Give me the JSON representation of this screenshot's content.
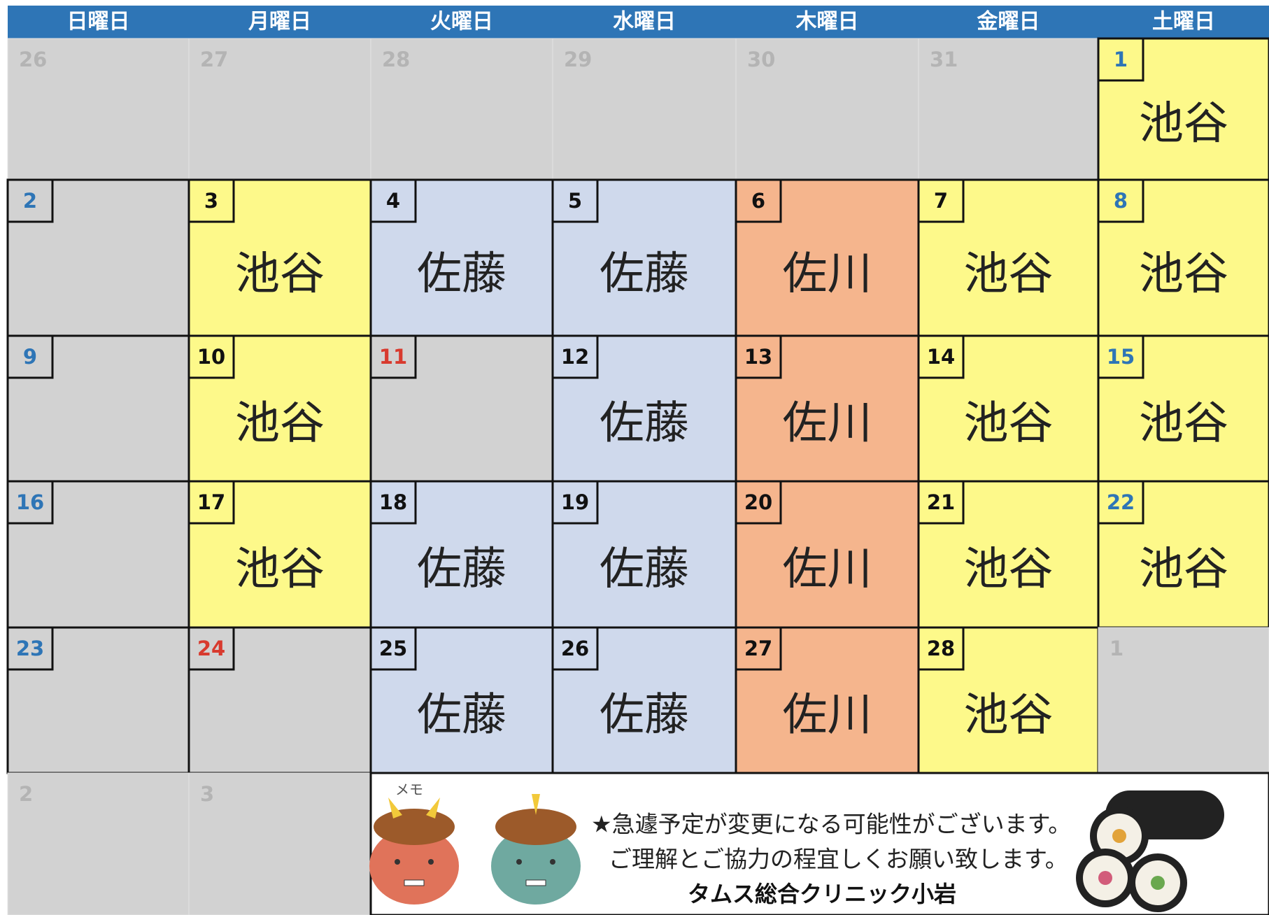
{
  "weekdays": [
    "日曜日",
    "月曜日",
    "火曜日",
    "水曜日",
    "木曜日",
    "金曜日",
    "土曜日"
  ],
  "weeks": [
    [
      {
        "day": "26",
        "color": "#d2d2d2",
        "day_color": "#b4b4b4",
        "outside": true
      },
      {
        "day": "27",
        "color": "#d2d2d2",
        "day_color": "#b4b4b4",
        "outside": true
      },
      {
        "day": "28",
        "color": "#d2d2d2",
        "day_color": "#b4b4b4",
        "outside": true
      },
      {
        "day": "29",
        "color": "#d2d2d2",
        "day_color": "#b4b4b4",
        "outside": true
      },
      {
        "day": "30",
        "color": "#d2d2d2",
        "day_color": "#b4b4b4",
        "outside": true
      },
      {
        "day": "31",
        "color": "#d2d2d2",
        "day_color": "#b4b4b4",
        "outside": true
      },
      {
        "day": "1",
        "color": "#fdf98a",
        "day_color": "#2e75b6",
        "doctor": "池谷"
      }
    ],
    [
      {
        "day": "2",
        "color": "#d2d2d2",
        "day_color": "#2e75b6"
      },
      {
        "day": "3",
        "color": "#fdf98a",
        "day_color": "#111111",
        "doctor": "池谷"
      },
      {
        "day": "4",
        "color": "#cfd9ec",
        "day_color": "#111111",
        "doctor": "佐藤"
      },
      {
        "day": "5",
        "color": "#cfd9ec",
        "day_color": "#111111",
        "doctor": "佐藤"
      },
      {
        "day": "6",
        "color": "#f5b58d",
        "day_color": "#111111",
        "doctor": "佐川"
      },
      {
        "day": "7",
        "color": "#fdf98a",
        "day_color": "#111111",
        "doctor": "池谷"
      },
      {
        "day": "8",
        "color": "#fdf98a",
        "day_color": "#2e75b6",
        "doctor": "池谷"
      }
    ],
    [
      {
        "day": "9",
        "color": "#d2d2d2",
        "day_color": "#2e75b6"
      },
      {
        "day": "10",
        "color": "#fdf98a",
        "day_color": "#111111",
        "doctor": "池谷"
      },
      {
        "day": "11",
        "color": "#d2d2d2",
        "day_color": "#d83a2e"
      },
      {
        "day": "12",
        "color": "#cfd9ec",
        "day_color": "#111111",
        "doctor": "佐藤"
      },
      {
        "day": "13",
        "color": "#f5b58d",
        "day_color": "#111111",
        "doctor": "佐川"
      },
      {
        "day": "14",
        "color": "#fdf98a",
        "day_color": "#111111",
        "doctor": "池谷"
      },
      {
        "day": "15",
        "color": "#fdf98a",
        "day_color": "#2e75b6",
        "doctor": "池谷"
      }
    ],
    [
      {
        "day": "16",
        "color": "#d2d2d2",
        "day_color": "#2e75b6"
      },
      {
        "day": "17",
        "color": "#fdf98a",
        "day_color": "#111111",
        "doctor": "池谷"
      },
      {
        "day": "18",
        "color": "#cfd9ec",
        "day_color": "#111111",
        "doctor": "佐藤"
      },
      {
        "day": "19",
        "color": "#cfd9ec",
        "day_color": "#111111",
        "doctor": "佐藤"
      },
      {
        "day": "20",
        "color": "#f5b58d",
        "day_color": "#111111",
        "doctor": "佐川"
      },
      {
        "day": "21",
        "color": "#fdf98a",
        "day_color": "#111111",
        "doctor": "池谷"
      },
      {
        "day": "22",
        "color": "#fdf98a",
        "day_color": "#2e75b6",
        "doctor": "池谷"
      }
    ],
    [
      {
        "day": "23",
        "color": "#d2d2d2",
        "day_color": "#2e75b6"
      },
      {
        "day": "24",
        "color": "#d2d2d2",
        "day_color": "#d83a2e"
      },
      {
        "day": "25",
        "color": "#cfd9ec",
        "day_color": "#111111",
        "doctor": "佐藤"
      },
      {
        "day": "26",
        "color": "#cfd9ec",
        "day_color": "#111111",
        "doctor": "佐藤"
      },
      {
        "day": "27",
        "color": "#f5b58d",
        "day_color": "#111111",
        "doctor": "佐川"
      },
      {
        "day": "28",
        "color": "#fdf98a",
        "day_color": "#111111",
        "doctor": "池谷"
      },
      {
        "day": "1",
        "color": "#d2d2d2",
        "day_color": "#b4b4b4",
        "outside": true
      }
    ],
    [
      {
        "day": "2",
        "color": "#d2d2d2",
        "day_color": "#b4b4b4",
        "outside": true
      },
      {
        "day": "3",
        "color": "#d2d2d2",
        "day_color": "#b4b4b4",
        "outside": true
      }
    ]
  ],
  "memo": {
    "label": "メモ",
    "lines": [
      "★急遽予定が変更になる可能性がございます。",
      "ご理解とご協力の程宜しくお願い致します。"
    ],
    "clinic": "タムス総合クリニック小岩"
  }
}
